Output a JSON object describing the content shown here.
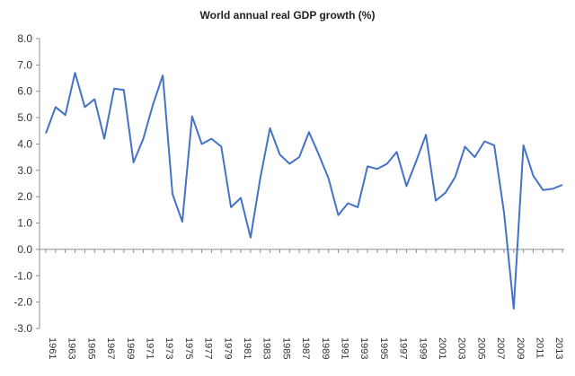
{
  "chart_data": {
    "type": "line",
    "title": "World annual real GDP growth (%)",
    "xlabel": "",
    "ylabel": "",
    "ylim": [
      -3.0,
      8.0
    ],
    "yticks": [
      "8.0",
      "7.0",
      "6.0",
      "5.0",
      "4.0",
      "3.0",
      "2.0",
      "1.0",
      "0.0",
      "-1.0",
      "-2.0",
      "-3.0"
    ],
    "grid": false,
    "legend": "none",
    "line_color": "#4472c4",
    "x_tick_labels": [
      "1961",
      "1963",
      "1965",
      "1967",
      "1969",
      "1971",
      "1973",
      "1975",
      "1977",
      "1979",
      "1981",
      "1983",
      "1985",
      "1987",
      "1989",
      "1991",
      "1993",
      "1995",
      "1997",
      "1999",
      "2001",
      "2003",
      "2005",
      "2007",
      "2009",
      "2011",
      "2013"
    ],
    "x": [
      1961,
      1962,
      1963,
      1964,
      1965,
      1966,
      1967,
      1968,
      1969,
      1970,
      1971,
      1972,
      1973,
      1974,
      1975,
      1976,
      1977,
      1978,
      1979,
      1980,
      1981,
      1982,
      1983,
      1984,
      1985,
      1986,
      1987,
      1988,
      1989,
      1990,
      1991,
      1992,
      1993,
      1994,
      1995,
      1996,
      1997,
      1998,
      1999,
      2000,
      2001,
      2002,
      2003,
      2004,
      2005,
      2006,
      2007,
      2008,
      2009,
      2010,
      2011,
      2012,
      2013,
      2014
    ],
    "series": [
      {
        "values": [
          4.4,
          5.4,
          5.1,
          6.7,
          5.4,
          5.7,
          4.2,
          6.1,
          6.05,
          3.3,
          4.2,
          5.5,
          6.6,
          2.1,
          1.05,
          5.05,
          4.0,
          4.2,
          3.9,
          1.6,
          1.95,
          0.45,
          2.7,
          4.6,
          3.6,
          3.25,
          3.5,
          4.45,
          3.6,
          2.7,
          1.3,
          1.75,
          1.6,
          3.15,
          3.05,
          3.25,
          3.7,
          2.4,
          3.35,
          4.35,
          1.85,
          2.15,
          2.75,
          3.9,
          3.5,
          4.1,
          3.95,
          1.4,
          -2.25,
          3.95,
          2.8,
          2.25,
          2.3,
          2.45
        ]
      }
    ]
  }
}
